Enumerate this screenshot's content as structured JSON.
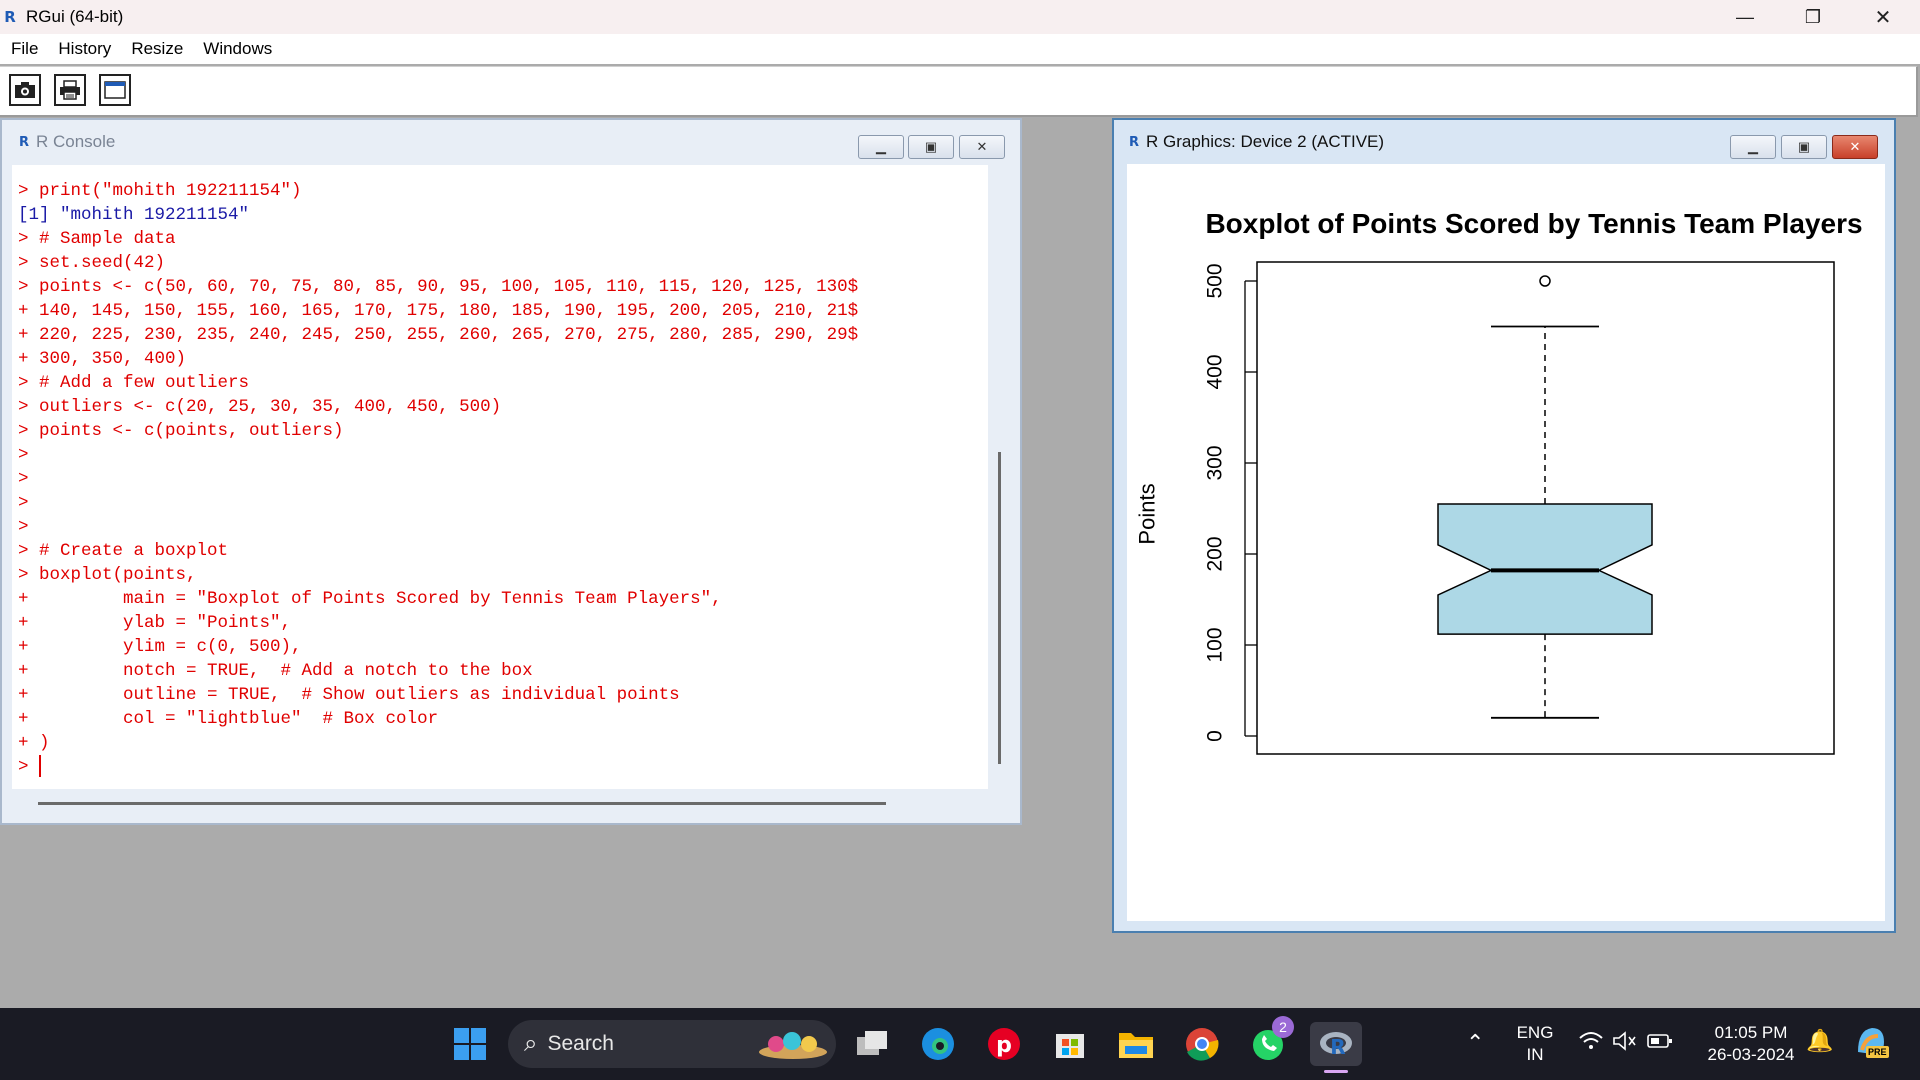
{
  "app": {
    "title": "RGui (64-bit)",
    "logo_letter": "R"
  },
  "window_controls": {
    "minimize": "—",
    "restore": "❐",
    "close": "✕"
  },
  "menu": [
    "File",
    "History",
    "Resize",
    "Windows"
  ],
  "toolbar": {
    "buttons": [
      "camera-icon",
      "printer-icon",
      "window-icon"
    ]
  },
  "console": {
    "title": "R Console",
    "lines": [
      {
        "t": "> print(\"mohith 192211154\")",
        "k": "in"
      },
      {
        "t": "[1] \"mohith 192211154\"",
        "k": "out"
      },
      {
        "t": "> # Sample data",
        "k": "in"
      },
      {
        "t": "> set.seed(42)",
        "k": "in"
      },
      {
        "t": "> points <- c(50, 60, 70, 75, 80, 85, 90, 95, 100, 105, 110, 115, 120, 125, 130$",
        "k": "in"
      },
      {
        "t": "+ 140, 145, 150, 155, 160, 165, 170, 175, 180, 185, 190, 195, 200, 205, 210, 21$",
        "k": "in"
      },
      {
        "t": "+ 220, 225, 230, 235, 240, 245, 250, 255, 260, 265, 270, 275, 280, 285, 290, 29$",
        "k": "in"
      },
      {
        "t": "+ 300, 350, 400)",
        "k": "in"
      },
      {
        "t": "> # Add a few outliers",
        "k": "in"
      },
      {
        "t": "> outliers <- c(20, 25, 30, 35, 400, 450, 500)",
        "k": "in"
      },
      {
        "t": "> points <- c(points, outliers)",
        "k": "in"
      },
      {
        "t": ">",
        "k": "in"
      },
      {
        "t": ">",
        "k": "in"
      },
      {
        "t": ">",
        "k": "in"
      },
      {
        "t": ">",
        "k": "in"
      },
      {
        "t": "> # Create a boxplot",
        "k": "in"
      },
      {
        "t": "> boxplot(points,",
        "k": "in"
      },
      {
        "t": "+         main = \"Boxplot of Points Scored by Tennis Team Players\",",
        "k": "in"
      },
      {
        "t": "+         ylab = \"Points\",",
        "k": "in"
      },
      {
        "t": "+         ylim = c(0, 500),",
        "k": "in"
      },
      {
        "t": "+         notch = TRUE,  # Add a notch to the box",
        "k": "in"
      },
      {
        "t": "+         outline = TRUE,  # Show outliers as individual points",
        "k": "in"
      },
      {
        "t": "+         col = \"lightblue\"  # Box color",
        "k": "in"
      },
      {
        "t": "+ )",
        "k": "in"
      }
    ],
    "prompt": "> "
  },
  "graphics": {
    "title": "R Graphics: Device 2 (ACTIVE)",
    "chart_data": {
      "type": "boxplot",
      "title": "Boxplot of Points Scored by Tennis Team Players",
      "ylabel": "Points",
      "xlabel": "",
      "ylim": [
        0,
        500
      ],
      "yticks": [
        "0",
        "100",
        "200",
        "300",
        "400",
        "500"
      ],
      "box": {
        "min": 20,
        "q1": 112,
        "median": 182,
        "q3": 255,
        "max": 450,
        "notch_low": 155,
        "notch_high": 210,
        "fill": "#add8e6"
      },
      "outliers": [
        500
      ],
      "grid": false
    }
  },
  "taskbar": {
    "search_label": "Search",
    "lang": [
      "ENG",
      "IN"
    ],
    "time": "01:05 PM",
    "date": "26-03-2024",
    "whatsapp_badge": "2",
    "pre_badge": "PRE"
  }
}
